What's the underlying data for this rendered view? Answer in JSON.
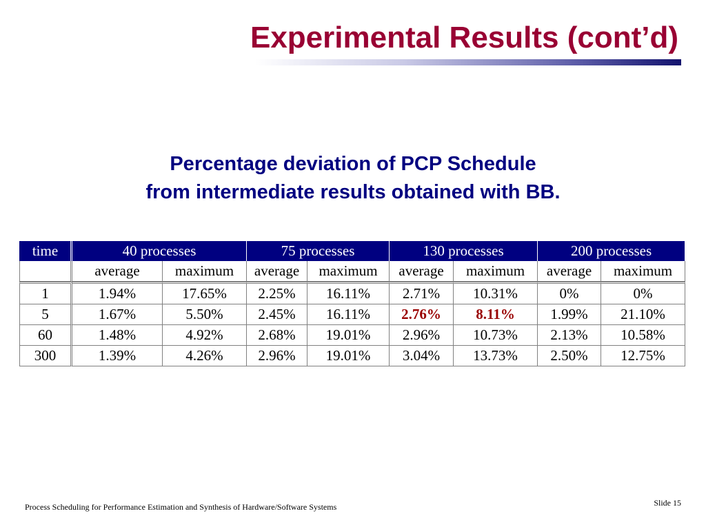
{
  "slide": {
    "title": "Experimental Results (cont’d)",
    "subtitle_line1": "Percentage deviation of PCP Schedule",
    "subtitle_line2": "from intermediate results obtained with BB.",
    "footer": "Process Scheduling for Performance Estimation and Synthesis of Hardware/Software Systems",
    "slide_label": "Slide",
    "slide_number": "15"
  },
  "colors": {
    "title": "#990033",
    "subtitle": "#000080",
    "header_bg": "#000080",
    "highlight": "#990000"
  },
  "table": {
    "time_header": "time",
    "groups": [
      "40 processes",
      "75 processes",
      "130 processes",
      "200 processes"
    ],
    "subheaders": [
      "average",
      "maximum",
      "average",
      "maximum",
      "average",
      "maximum",
      "average",
      "maximum"
    ],
    "rows": [
      {
        "time": "1",
        "cells": [
          "1.94%",
          "17.65%",
          "2.25%",
          "16.11%",
          "2.71%",
          "10.31%",
          "0%",
          "0%"
        ]
      },
      {
        "time": "5",
        "cells": [
          "1.67%",
          "5.50%",
          "2.45%",
          "16.11%",
          "2.76%",
          "8.11%",
          "1.99%",
          "21.10%"
        ]
      },
      {
        "time": "60",
        "cells": [
          "1.48%",
          "4.92%",
          "2.68%",
          "19.01%",
          "2.96%",
          "10.73%",
          "2.13%",
          "10.58%"
        ]
      },
      {
        "time": "300",
        "cells": [
          "1.39%",
          "4.26%",
          "2.96%",
          "19.01%",
          "3.04%",
          "13.73%",
          "2.50%",
          "12.75%"
        ]
      }
    ]
  }
}
